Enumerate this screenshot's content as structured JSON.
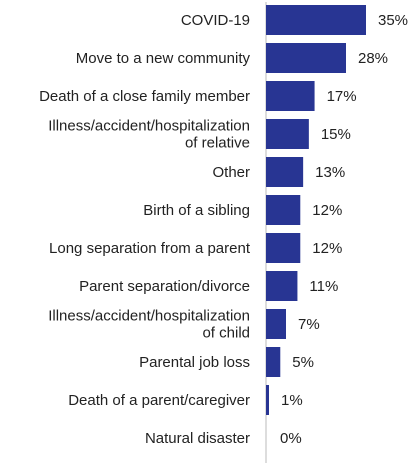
{
  "chart_data": {
    "type": "bar",
    "orientation": "horizontal",
    "categories": [
      [
        "COVID-19"
      ],
      [
        "Move to a new community"
      ],
      [
        "Death of a close family member"
      ],
      [
        "Illness/accident/hospitalization",
        "of relative"
      ],
      [
        "Other"
      ],
      [
        "Birth of a sibling"
      ],
      [
        "Long separation from a parent"
      ],
      [
        "Parent separation/divorce"
      ],
      [
        "Illness/accident/hospitalization",
        "of child"
      ],
      [
        "Parental job loss"
      ],
      [
        "Death of a parent/caregiver"
      ],
      [
        "Natural disaster"
      ]
    ],
    "values": [
      35,
      28,
      17,
      15,
      13,
      12,
      12,
      11,
      7,
      5,
      1,
      0
    ],
    "value_labels": [
      "35%",
      "28%",
      "17%",
      "15%",
      "13%",
      "12%",
      "12%",
      "11%",
      "7%",
      "5%",
      "1%",
      "0%"
    ],
    "unit": "%",
    "xlim": [
      0,
      35
    ],
    "grid": false,
    "legend": "none",
    "bar_color": "#283593",
    "text_color": "#222222"
  }
}
